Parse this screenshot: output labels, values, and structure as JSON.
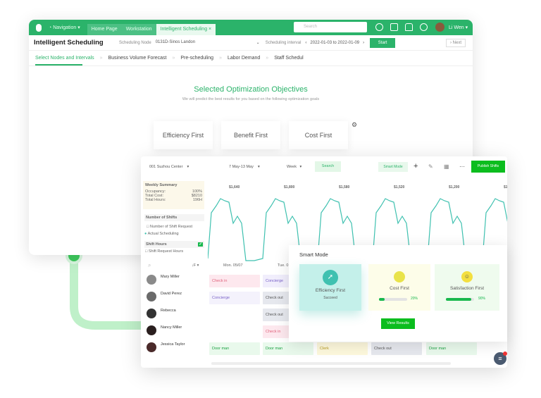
{
  "back": {
    "nav": {
      "navigation": "Navigation",
      "tabs": [
        "Home Page",
        "Workstation",
        "Intelligent Scheduling"
      ],
      "search_placeholder": "Search",
      "user": "Li Wen"
    },
    "title": "Intelligent Scheduling",
    "node_label": "Scheduling Node",
    "node_value": "0131D-Sinos Landon",
    "interval_label": "Scheduling interval",
    "interval_value": "2022-01-03 to 2022-01-09",
    "start": "Start",
    "next": "Next",
    "steps": [
      "Select Nodes and Intervals",
      "Business Volume Forecast",
      "Pre-scheduling",
      "Labor Demand",
      "Staff Schedul"
    ],
    "heading": "Selected Optimization Objectives",
    "subheading": "We will predict the best results for you based on the following optimization goals",
    "objectives": [
      "Efficiency First",
      "Benefit First",
      "Cost First"
    ]
  },
  "front": {
    "toolbar": {
      "store": "001 Suzhou Center",
      "time": "7 May-13 May",
      "view": "Week",
      "search": "Search",
      "smart_mode": "Smart Mode",
      "publish": "Publish Shifts"
    },
    "summary": {
      "title": "Weekly Summary",
      "rows": [
        [
          "Occupancy:",
          "100%"
        ],
        [
          "Total Cost:",
          "$8210"
        ],
        [
          "Total Hours:",
          "196H"
        ]
      ]
    },
    "shifts_title": "Number of Shifts",
    "opt1": "Number of Shift Request",
    "opt2": "Actual Scheduling",
    "hours_title": "Shift Hours",
    "opt3": "Shift Request Hours",
    "day_costs": [
      "$1,640",
      "$1,800",
      "$1,580",
      "$1,520",
      "$1,200",
      "$1,6"
    ],
    "days": [
      "Mon. 05/07",
      "Tue. 0"
    ],
    "people": [
      "Mary Miller",
      "David Perez",
      "Rebecca",
      "Nancy Miller",
      "Jessica Taylor"
    ],
    "shifts": [
      "Check in",
      "Concierge",
      "Concierge",
      "Check out",
      "Check out",
      "Check in",
      "Door man",
      "Door man",
      "Clerk",
      "Check out",
      "Door man"
    ]
  },
  "smart": {
    "title": "Smart Mode",
    "cards": [
      {
        "label": "Efficiency First",
        "status": "Succeed"
      },
      {
        "label": "Cost First",
        "progress": "20%"
      },
      {
        "label": "Satisfaction First",
        "progress": "90%"
      }
    ],
    "view": "View Results"
  },
  "colors": {
    "brand": "#2bb36a",
    "publish": "#0bbd1e",
    "teal": "#3fc1b0"
  }
}
